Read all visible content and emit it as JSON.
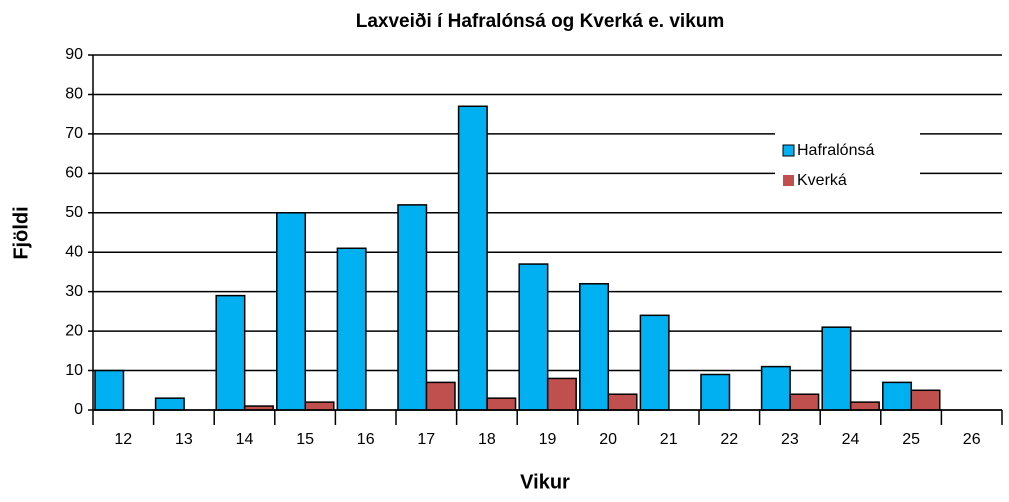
{
  "chart_data": {
    "type": "bar",
    "title": "Laxveiði í Hafralónsá og Kverká e. vikum",
    "x_label": "Vikur",
    "y_label": "Fjöldi",
    "categories": [
      "12",
      "13",
      "14",
      "15",
      "16",
      "17",
      "18",
      "19",
      "20",
      "21",
      "22",
      "23",
      "24",
      "25",
      "26"
    ],
    "series": [
      {
        "name": "Hafralónsá",
        "color": "#00b0f0",
        "values": [
          10,
          3,
          29,
          50,
          41,
          52,
          77,
          37,
          32,
          24,
          9,
          11,
          21,
          7,
          0
        ]
      },
      {
        "name": "Kverká",
        "color": "#c0504d",
        "values": [
          0,
          0,
          1,
          2,
          0,
          7,
          3,
          8,
          4,
          0,
          0,
          4,
          2,
          5,
          0
        ]
      }
    ],
    "ylim": [
      0,
      90
    ],
    "yticks": [
      0,
      10,
      20,
      30,
      40,
      50,
      60,
      70,
      80,
      90
    ],
    "grid": true,
    "legend": "upper right"
  }
}
